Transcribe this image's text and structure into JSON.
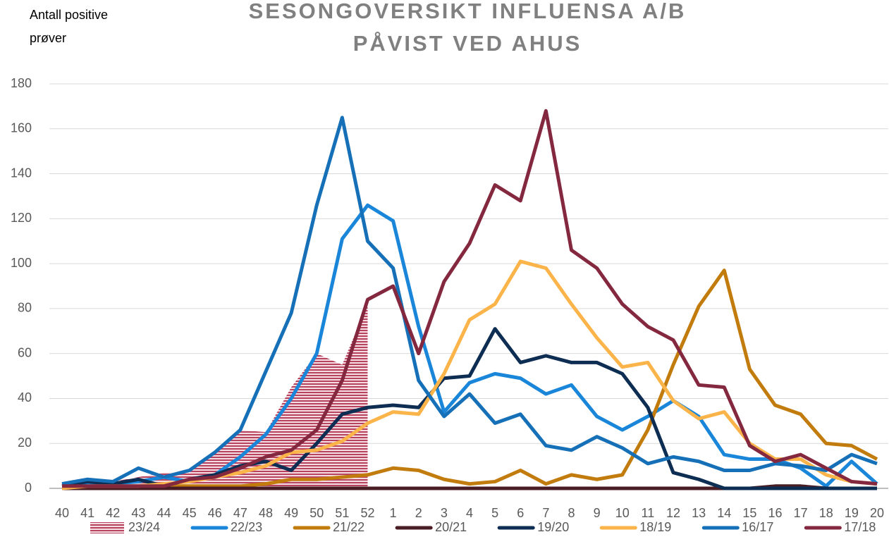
{
  "chart_data": {
    "type": "line",
    "title": [
      "SESONGOVERSIKT INFLUENSA A/B",
      "PÅVIST VED AHUS"
    ],
    "y_label": [
      "Antall positive",
      "prøver"
    ],
    "categories": [
      "40",
      "41",
      "42",
      "43",
      "44",
      "45",
      "46",
      "47",
      "48",
      "49",
      "50",
      "51",
      "52",
      "1",
      "2",
      "3",
      "4",
      "5",
      "6",
      "7",
      "8",
      "9",
      "10",
      "11",
      "12",
      "13",
      "14",
      "15",
      "16",
      "17",
      "18",
      "19",
      "20"
    ],
    "ylim": [
      0,
      180
    ],
    "yticks": [
      0,
      20,
      40,
      60,
      80,
      100,
      120,
      140,
      160,
      180
    ],
    "grid": true,
    "legend": "bottom",
    "series": [
      {
        "name": "23/24",
        "type": "area",
        "color": "#b8435f",
        "values": [
          2,
          3,
          3,
          5,
          7,
          7,
          16,
          26,
          25,
          45,
          60,
          55,
          82,
          null,
          null,
          null,
          null,
          null,
          null,
          null,
          null,
          null,
          null,
          null,
          null,
          null,
          null,
          null,
          null,
          null,
          null,
          null,
          null
        ]
      },
      {
        "name": "22/23",
        "color": "#1a86d9",
        "values": [
          2,
          2,
          2,
          3,
          5,
          3,
          6,
          14,
          24,
          40,
          60,
          111,
          126,
          119,
          72,
          34,
          47,
          51,
          49,
          42,
          46,
          32,
          26,
          32,
          39,
          32,
          15,
          13,
          13,
          9,
          1,
          12,
          2
        ]
      },
      {
        "name": "21/22",
        "color": "#c27c0e",
        "values": [
          0,
          0,
          0,
          0,
          1,
          1,
          1,
          1,
          2,
          4,
          4,
          5,
          6,
          9,
          8,
          4,
          2,
          3,
          8,
          2,
          6,
          4,
          6,
          26,
          55,
          81,
          97,
          53,
          37,
          33,
          20,
          19,
          13
        ]
      },
      {
        "name": "20/21",
        "color": "#4a1d24",
        "values": [
          0,
          0,
          0,
          0,
          0,
          0,
          0,
          0,
          0,
          0,
          0,
          0,
          0,
          0,
          0,
          0,
          0,
          0,
          0,
          0,
          0,
          0,
          0,
          0,
          0,
          0,
          0,
          0,
          1,
          1,
          0,
          0,
          0
        ]
      },
      {
        "name": "19/20",
        "color": "#0e2d52",
        "values": [
          1,
          3,
          2,
          4,
          1,
          4,
          6,
          10,
          12,
          8,
          20,
          33,
          36,
          37,
          36,
          49,
          50,
          71,
          56,
          59,
          56,
          56,
          51,
          36,
          7,
          4,
          0,
          0,
          0,
          0,
          0,
          0,
          0
        ]
      },
      {
        "name": "18/19",
        "color": "#fbb449",
        "values": [
          0,
          1,
          1,
          1,
          2,
          3,
          5,
          7,
          10,
          16,
          17,
          21,
          29,
          34,
          33,
          51,
          75,
          82,
          101,
          98,
          82,
          67,
          54,
          56,
          39,
          31,
          34,
          20,
          13,
          13,
          6,
          3,
          2
        ]
      },
      {
        "name": "16/17",
        "color": "#1670b8",
        "values": [
          2,
          4,
          3,
          9,
          5,
          8,
          16,
          26,
          52,
          78,
          126,
          165,
          110,
          98,
          48,
          32,
          42,
          29,
          33,
          19,
          17,
          23,
          18,
          11,
          14,
          12,
          8,
          8,
          11,
          10,
          8,
          15,
          11
        ]
      },
      {
        "name": "17/18",
        "color": "#84283f",
        "values": [
          1,
          1,
          1,
          1,
          1,
          4,
          5,
          9,
          14,
          17,
          26,
          48,
          84,
          90,
          60,
          92,
          109,
          135,
          128,
          168,
          106,
          98,
          82,
          72,
          66,
          46,
          45,
          19,
          12,
          15,
          9,
          3,
          2
        ]
      }
    ]
  }
}
